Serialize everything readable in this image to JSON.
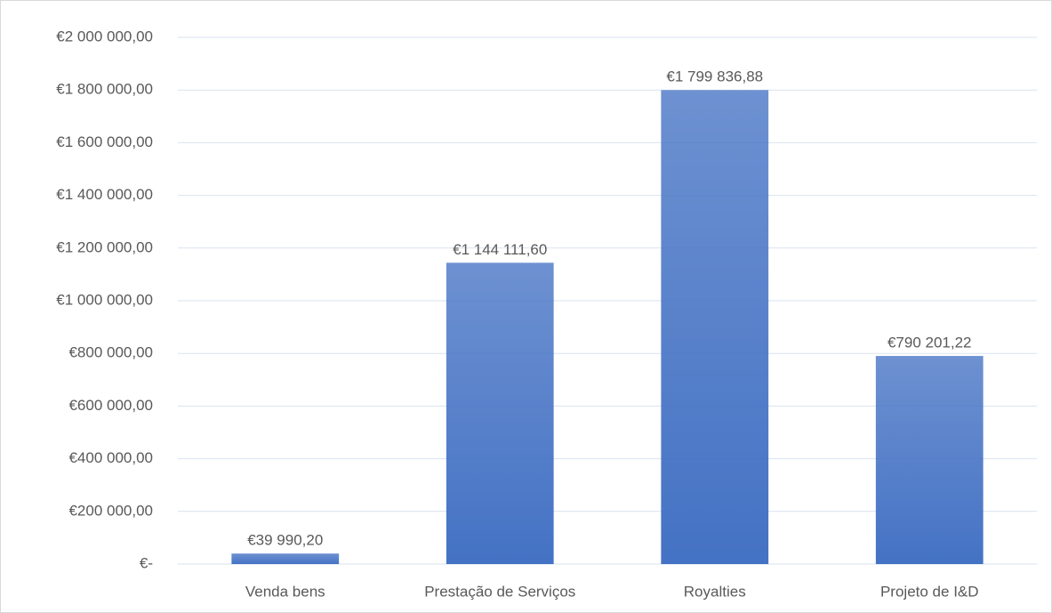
{
  "chart_data": {
    "type": "bar",
    "categories": [
      "Venda bens",
      "Prestação de Serviços",
      "Royalties",
      "Projeto de I&D"
    ],
    "values": [
      39990.2,
      1144111.6,
      1799836.88,
      790201.22
    ],
    "value_labels": [
      "€39 990,20",
      "€1 144 111,60",
      "€1 799 836,88",
      "€790 201,22"
    ],
    "color": "#4472c4",
    "ylim": [
      0,
      2000000
    ],
    "yticks": [
      {
        "value": 0,
        "label": "€-"
      },
      {
        "value": 200000,
        "label": "€200 000,00"
      },
      {
        "value": 400000,
        "label": "€400 000,00"
      },
      {
        "value": 600000,
        "label": "€600 000,00"
      },
      {
        "value": 800000,
        "label": "€800 000,00"
      },
      {
        "value": 1000000,
        "label": "€1 000 000,00"
      },
      {
        "value": 1200000,
        "label": "€1 200 000,00"
      },
      {
        "value": 1400000,
        "label": "€1 400 000,00"
      },
      {
        "value": 1600000,
        "label": "€1 600 000,00"
      },
      {
        "value": 1800000,
        "label": "€1 800 000,00"
      },
      {
        "value": 2000000,
        "label": "€2 000 000,00"
      }
    ],
    "grid": true
  }
}
